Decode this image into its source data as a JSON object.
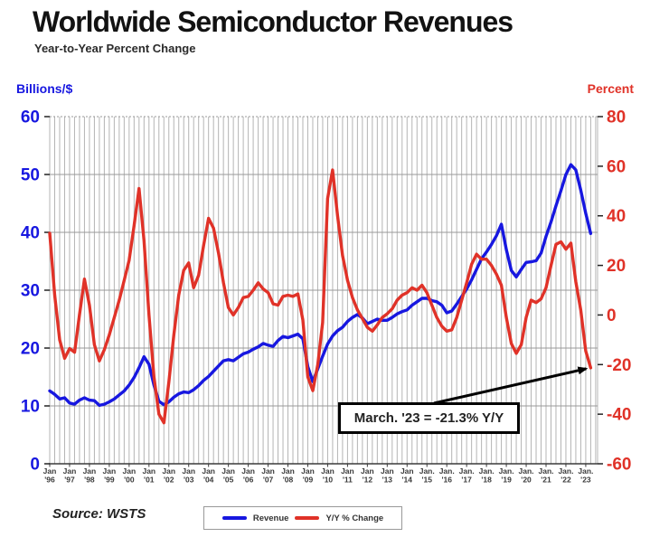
{
  "header": {
    "title": "Worldwide Semiconductor Revenues",
    "subtitle": "Year-to-Year Percent Change"
  },
  "axes": {
    "left_title": "Billions/$",
    "right_title": "Percent"
  },
  "x_axis": {
    "labels": [
      {
        "month": "Jan",
        "year": "'96"
      },
      {
        "month": "Jan",
        "year": "'97"
      },
      {
        "month": "Jan",
        "year": "'98"
      },
      {
        "month": "Jan",
        "year": "'99"
      },
      {
        "month": "Jan",
        "year": "'00"
      },
      {
        "month": "Jan",
        "year": "'01"
      },
      {
        "month": "Jan",
        "year": "'02"
      },
      {
        "month": "Jan",
        "year": "'03"
      },
      {
        "month": "Jan",
        "year": "'04"
      },
      {
        "month": "Jan",
        "year": "'05"
      },
      {
        "month": "Jan",
        "year": "'06"
      },
      {
        "month": "Jan",
        "year": "'07"
      },
      {
        "month": "Jan",
        "year": "'08"
      },
      {
        "month": "Jan",
        "year": "'09"
      },
      {
        "month": "Jan",
        "year": "'10"
      },
      {
        "month": "Jan",
        "year": "'11"
      },
      {
        "month": "Jan",
        "year": "'12"
      },
      {
        "month": "Jan",
        "year": "'13"
      },
      {
        "month": "Jan",
        "year": "'14"
      },
      {
        "month": "Jan.",
        "year": "'15"
      },
      {
        "month": "Jan.",
        "year": "'16"
      },
      {
        "month": "Jan.",
        "year": "'17"
      },
      {
        "month": "Jan.",
        "year": "'18"
      },
      {
        "month": "Jan.",
        "year": "'19"
      },
      {
        "month": "Jan.",
        "year": "'20"
      },
      {
        "month": "Jan.",
        "year": "'21"
      },
      {
        "month": "Jan.",
        "year": "'22"
      },
      {
        "month": "Jan.",
        "year": "'23"
      }
    ]
  },
  "legend": {
    "revenue_label": "Revenue",
    "yoy_label": "Y/Y % Change"
  },
  "annotation": {
    "text": "March. '23 = -21.3% Y/Y"
  },
  "source_label": "Source: WSTS",
  "colors": {
    "revenue": "#1717e0",
    "yoy": "#e03228",
    "grid_minor": "#b4b4b4",
    "grid_major": "#999999",
    "axis_line": "#3a3a3a",
    "x_label": "#3a3a3a"
  },
  "chart_data": {
    "type": "line",
    "title": "Worldwide Semiconductor Revenues",
    "subtitle": "Year-to-Year Percent Change",
    "x_start_year": 1996.0,
    "x_step_years": 0.25,
    "x_end_year": 2023.25,
    "grid": {
      "vertical": "quarterly",
      "horizontal_step_left_axis": 10
    },
    "left_axis": {
      "label": "Billions/$",
      "range": [
        0,
        60
      ],
      "ticks": [
        0,
        10,
        20,
        30,
        40,
        50,
        60
      ],
      "color": "#1717e0"
    },
    "right_axis": {
      "label": "Percent",
      "range": [
        -60,
        80
      ],
      "ticks": [
        -60,
        -40,
        -20,
        0,
        20,
        40,
        60,
        80
      ],
      "color": "#e03228"
    },
    "legend_position": "bottom",
    "series": [
      {
        "name": "Revenue",
        "axis": "left",
        "unit": "Billions/$",
        "color": "#1717e0",
        "values": [
          12.6,
          12.0,
          11.2,
          11.4,
          10.5,
          10.3,
          11.0,
          11.4,
          11.0,
          10.9,
          10.1,
          10.3,
          10.7,
          11.2,
          11.9,
          12.6,
          13.6,
          14.9,
          16.6,
          18.5,
          17.2,
          13.6,
          10.8,
          10.2,
          10.7,
          11.5,
          12.1,
          12.4,
          12.3,
          12.8,
          13.5,
          14.4,
          15.1,
          16.0,
          16.9,
          17.8,
          18.0,
          17.8,
          18.4,
          19.0,
          19.3,
          19.8,
          20.2,
          20.8,
          20.5,
          20.3,
          21.3,
          22.0,
          21.8,
          22.1,
          22.4,
          21.6,
          16.8,
          14.2,
          16.4,
          18.6,
          20.7,
          22.1,
          23.0,
          23.6,
          24.6,
          25.3,
          25.8,
          25.2,
          24.2,
          24.6,
          25.0,
          24.8,
          24.8,
          25.3,
          25.9,
          26.3,
          26.6,
          27.4,
          28.0,
          28.6,
          28.6,
          28.2,
          28.0,
          27.4,
          26.1,
          26.4,
          27.6,
          28.9,
          30.2,
          31.8,
          33.6,
          35.4,
          36.6,
          37.9,
          39.4,
          41.4,
          37.0,
          33.4,
          32.3,
          33.6,
          34.8,
          34.9,
          35.1,
          36.4,
          39.3,
          41.8,
          44.6,
          47.2,
          50.0,
          51.7,
          50.8,
          47.3,
          43.3,
          39.8
        ]
      },
      {
        "name": "Y/Y % Change",
        "axis": "right",
        "unit": "Percent",
        "color": "#e03228",
        "values": [
          33,
          8,
          -10,
          -17.5,
          -13.5,
          -15,
          0,
          14.5,
          4,
          -12,
          -18.5,
          -14,
          -8,
          -1,
          6,
          14,
          22,
          36,
          51,
          30,
          0,
          -25,
          -40,
          -43.5,
          -27,
          -8,
          8,
          18,
          21,
          11,
          16,
          28,
          39,
          35,
          25,
          13,
          3,
          0,
          3,
          7,
          7.5,
          10,
          13,
          10.5,
          9,
          4.5,
          4,
          7.5,
          8,
          7.5,
          8.5,
          -2,
          -25,
          -30.5,
          -20,
          -3,
          47,
          58.5,
          40,
          24,
          14,
          7,
          2,
          -1.5,
          -5,
          -6.5,
          -4,
          -1,
          0.5,
          2.5,
          6,
          8,
          9,
          11,
          10,
          12,
          9,
          4,
          -1,
          -4.5,
          -6.5,
          -6,
          -1,
          6,
          13,
          20.5,
          24.5,
          22.5,
          22.5,
          20,
          16.5,
          12,
          -1,
          -11.5,
          -15.5,
          -12,
          -1,
          6,
          5,
          6.5,
          11,
          20,
          28.5,
          29.5,
          26.5,
          29,
          13.5,
          2,
          -14.5,
          -21.3
        ]
      }
    ],
    "annotation": {
      "text": "March. '23 = -21.3% Y/Y",
      "points_to": {
        "year": 2023.25,
        "value": -21.3,
        "axis": "right"
      }
    }
  }
}
